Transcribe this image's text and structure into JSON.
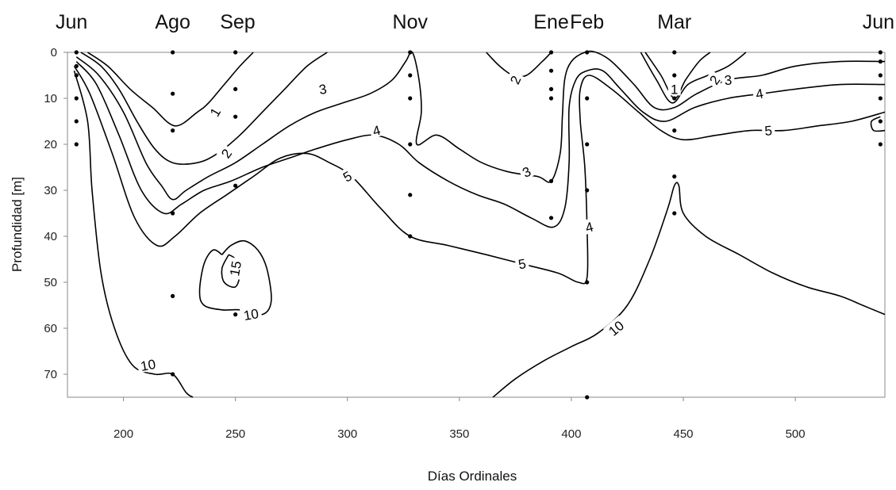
{
  "chart_data": {
    "type": "contour",
    "title": "",
    "xlabel": "Días Ordinales",
    "ylabel": "Profundidad [m]",
    "xlim": [
      175,
      540
    ],
    "ylim": [
      0,
      75
    ],
    "y_inverted": true,
    "grid": false,
    "x_ticks": [
      200,
      250,
      300,
      350,
      400,
      450,
      500
    ],
    "y_ticks": [
      0,
      10,
      20,
      30,
      40,
      50,
      60,
      70
    ],
    "month_labels": [
      {
        "label": "Jun",
        "day": 179
      },
      {
        "label": "Ago",
        "day": 222
      },
      {
        "label": "Sep",
        "day": 251
      },
      {
        "label": "Nov",
        "day": 328
      },
      {
        "label": "Ene",
        "day": 391
      },
      {
        "label": "Feb",
        "day": 407
      },
      {
        "label": "Mar",
        "day": 446
      },
      {
        "label": "Jun",
        "day": 538
      }
    ],
    "sample_points": [
      [
        179,
        0
      ],
      [
        179,
        3
      ],
      [
        179,
        5
      ],
      [
        179,
        10
      ],
      [
        179,
        15
      ],
      [
        179,
        20
      ],
      [
        222,
        0
      ],
      [
        222,
        9
      ],
      [
        222,
        17
      ],
      [
        222,
        35
      ],
      [
        222,
        53
      ],
      [
        222,
        70
      ],
      [
        250,
        0
      ],
      [
        250,
        8
      ],
      [
        250,
        14
      ],
      [
        250,
        29
      ],
      [
        250,
        57
      ],
      [
        328,
        0
      ],
      [
        328,
        5
      ],
      [
        328,
        10
      ],
      [
        328,
        20
      ],
      [
        328,
        31
      ],
      [
        328,
        40
      ],
      [
        391,
        0
      ],
      [
        391,
        4
      ],
      [
        391,
        8
      ],
      [
        391,
        10
      ],
      [
        391,
        28
      ],
      [
        391,
        36
      ],
      [
        407,
        0
      ],
      [
        407,
        10
      ],
      [
        407,
        20
      ],
      [
        407,
        30
      ],
      [
        407,
        50
      ],
      [
        407,
        75
      ],
      [
        446,
        0
      ],
      [
        446,
        5
      ],
      [
        446,
        10
      ],
      [
        446,
        17
      ],
      [
        446,
        27
      ],
      [
        446,
        35
      ],
      [
        538,
        0
      ],
      [
        538,
        2
      ],
      [
        538,
        5
      ],
      [
        538,
        10
      ],
      [
        538,
        15
      ],
      [
        538,
        20
      ]
    ],
    "contours": [
      {
        "level": "1",
        "segments": [
          [
            [
              184,
              0
            ],
            [
              193,
              3
            ],
            [
              203,
              8
            ],
            [
              213,
              12
            ],
            [
              223,
              16
            ],
            [
              233,
              13
            ],
            [
              238,
              11
            ],
            [
              245,
              7
            ],
            [
              252,
              3
            ],
            [
              258,
              0
            ]
          ],
          [
            [
              433,
              0
            ],
            [
              440,
              5
            ],
            [
              446,
              10
            ],
            [
              451,
              6
            ],
            [
              457,
              2
            ],
            [
              462,
              0
            ]
          ]
        ],
        "labels": [
          [
            241,
            13,
            -60
          ],
          [
            446,
            8,
            0
          ]
        ]
      },
      {
        "level": "2",
        "segments": [
          [
            [
              181,
              0
            ],
            [
              190,
              3
            ],
            [
              198,
              8
            ],
            [
              206,
              15
            ],
            [
              214,
              21
            ],
            [
              222,
              24
            ],
            [
              233,
              24
            ],
            [
              242,
              22
            ],
            [
              252,
              18
            ],
            [
              262,
              13
            ],
            [
              272,
              8
            ],
            [
              282,
              3
            ],
            [
              291,
              0
            ]
          ],
          [
            [
              362,
              0
            ],
            [
              368,
              3
            ],
            [
              374,
              5
            ],
            [
              380,
              5
            ],
            [
              387,
              2
            ],
            [
              391,
              0
            ]
          ],
          [
            [
              431,
              0
            ],
            [
              438,
              6
            ],
            [
              445,
              11
            ],
            [
              452,
              7
            ],
            [
              461,
              5
            ],
            [
              470,
              3
            ],
            [
              478,
              0
            ]
          ]
        ],
        "labels": [
          [
            246,
            22,
            -55
          ],
          [
            375,
            6,
            -65
          ],
          [
            464,
            6,
            -55
          ]
        ]
      },
      {
        "level": "3",
        "segments": [
          [
            [
              179,
              1
            ],
            [
              189,
              5
            ],
            [
              200,
              13
            ],
            [
              210,
              24
            ],
            [
              217,
              29
            ],
            [
              222,
              32
            ],
            [
              228,
              30
            ],
            [
              238,
              27
            ],
            [
              250,
              24
            ],
            [
              262,
              20
            ],
            [
              274,
              16
            ],
            [
              286,
              13
            ],
            [
              298,
              11
            ],
            [
              310,
              9
            ],
            [
              320,
              6
            ],
            [
              326,
              2
            ],
            [
              329,
              0
            ],
            [
              332,
              6
            ],
            [
              333,
              13
            ],
            [
              331,
              20
            ],
            [
              340,
              18
            ],
            [
              350,
              21
            ],
            [
              360,
              24
            ],
            [
              372,
              26
            ],
            [
              385,
              27
            ],
            [
              391,
              28
            ],
            [
              395,
              22
            ],
            [
              396,
              14
            ],
            [
              397,
              6
            ],
            [
              400,
              2
            ],
            [
              406,
              0
            ],
            [
              411,
              0
            ],
            [
              418,
              2
            ],
            [
              428,
              7
            ],
            [
              437,
              12
            ],
            [
              446,
              12
            ],
            [
              456,
              9
            ],
            [
              470,
              6
            ],
            [
              485,
              5
            ],
            [
              500,
              3
            ],
            [
              520,
              2
            ],
            [
              540,
              2
            ]
          ]
        ],
        "labels": [
          [
            289,
            8,
            -10
          ],
          [
            380,
            26,
            -25
          ],
          [
            470,
            6,
            -5
          ]
        ]
      },
      {
        "level": "4",
        "segments": [
          [
            [
              179,
              2
            ],
            [
              188,
              7
            ],
            [
              198,
              18
            ],
            [
              208,
              30
            ],
            [
              218,
              35
            ],
            [
              226,
              33
            ],
            [
              236,
              30
            ],
            [
              248,
              28
            ],
            [
              262,
              25
            ],
            [
              274,
              23
            ],
            [
              286,
              21
            ],
            [
              300,
              19
            ],
            [
              312,
              18
            ],
            [
              323,
              20
            ],
            [
              332,
              24
            ],
            [
              345,
              28
            ],
            [
              358,
              31
            ],
            [
              370,
              33
            ],
            [
              382,
              36
            ],
            [
              392,
              38
            ],
            [
              397,
              34
            ],
            [
              399,
              24
            ],
            [
              399,
              12
            ],
            [
              402,
              6
            ],
            [
              407,
              4
            ],
            [
              414,
              4
            ],
            [
              422,
              8
            ],
            [
              432,
              13
            ],
            [
              442,
              15
            ],
            [
              455,
              12
            ],
            [
              470,
              10
            ],
            [
              485,
              9
            ],
            [
              500,
              8
            ],
            [
              520,
              7
            ],
            [
              540,
              7
            ]
          ]
        ],
        "labels": [
          [
            313,
            17,
            -15
          ],
          [
            408,
            38,
            -15
          ],
          [
            484,
            9,
            -10
          ]
        ]
      },
      {
        "level": "5",
        "segments": [
          [
            [
              178,
              3
            ],
            [
              185,
              9
            ],
            [
              195,
              22
            ],
            [
              205,
              36
            ],
            [
              215,
              42
            ],
            [
              223,
              40
            ],
            [
              234,
              35
            ],
            [
              246,
              31
            ],
            [
              258,
              27
            ],
            [
              270,
              23
            ],
            [
              282,
              22
            ],
            [
              292,
              24
            ],
            [
              302,
              27
            ],
            [
              315,
              34
            ],
            [
              328,
              40
            ],
            [
              345,
              42
            ],
            [
              362,
              44
            ],
            [
              378,
              46
            ],
            [
              394,
              48
            ],
            [
              403,
              50
            ],
            [
              407,
              49
            ],
            [
              407,
              38
            ],
            [
              406,
              25
            ],
            [
              404,
              15
            ],
            [
              404,
              8
            ],
            [
              408,
              5
            ],
            [
              418,
              8
            ],
            [
              430,
              13
            ],
            [
              440,
              17
            ],
            [
              450,
              19
            ],
            [
              465,
              18
            ],
            [
              480,
              17
            ],
            [
              495,
              17
            ],
            [
              510,
              16
            ],
            [
              525,
              15
            ],
            [
              540,
              13
            ]
          ]
        ],
        "labels": [
          [
            300,
            27,
            -30
          ],
          [
            378,
            46,
            -10
          ],
          [
            488,
            17,
            -5
          ]
        ]
      },
      {
        "level": "10",
        "segments": [
          [
            [
              178,
              4
            ],
            [
              184,
              15
            ],
            [
              186,
              30
            ],
            [
              190,
              48
            ],
            [
              196,
              60
            ],
            [
              204,
              68
            ],
            [
              214,
              70
            ],
            [
              222,
              70
            ],
            [
              228,
              74
            ],
            [
              231,
              75
            ]
          ],
          [
            [
              244,
              44
            ],
            [
              240,
              43
            ],
            [
              236,
              46
            ],
            [
              234,
              52
            ],
            [
              236,
              55
            ],
            [
              244,
              56
            ],
            [
              252,
              56
            ],
            [
              262,
              57
            ],
            [
              266,
              54
            ],
            [
              264,
              47
            ],
            [
              260,
              43
            ],
            [
              254,
              41
            ],
            [
              248,
              42
            ],
            [
              244,
              44
            ]
          ],
          [
            [
              365,
              75
            ],
            [
              375,
              71
            ],
            [
              388,
              67
            ],
            [
              400,
              64
            ],
            [
              412,
              61
            ],
            [
              425,
              55
            ],
            [
              435,
              45
            ],
            [
              443,
              34
            ],
            [
              446,
              29
            ],
            [
              448,
              29
            ],
            [
              450,
              35
            ],
            [
              460,
              40
            ],
            [
              475,
              44
            ],
            [
              490,
              48
            ],
            [
              505,
              51
            ],
            [
              520,
              53
            ],
            [
              530,
              55
            ],
            [
              540,
              57
            ]
          ],
          [
            [
              538,
              14
            ],
            [
              534,
              15
            ],
            [
              535,
              17
            ],
            [
              540,
              17
            ]
          ]
        ],
        "labels": [
          [
            211,
            68,
            -10
          ],
          [
            257,
            57,
            -10
          ],
          [
            420,
            60,
            -40
          ]
        ]
      },
      {
        "level": "15",
        "segments": [
          [
            [
              247,
              44
            ],
            [
              244,
              47
            ],
            [
              245,
              50
            ],
            [
              250,
              51
            ],
            [
              252,
              48
            ],
            [
              250,
              45
            ],
            [
              247,
              44
            ]
          ]
        ],
        "labels": [
          [
            250,
            47,
            -80
          ]
        ]
      }
    ]
  }
}
